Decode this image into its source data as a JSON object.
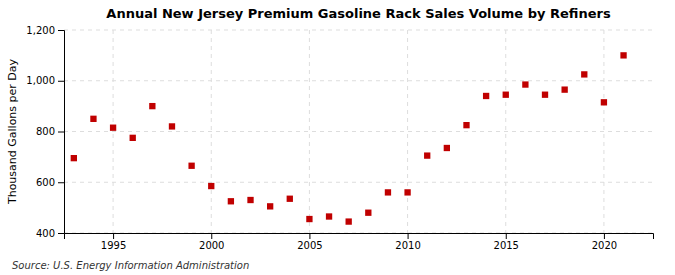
{
  "chart_data": {
    "type": "scatter",
    "title": "Annual New Jersey Premium Gasoline Rack Sales Volume by Refiners",
    "ylabel": "Thousand Gallons per Day",
    "source": "Source: U.S. Energy Information Administration",
    "x": [
      1993,
      1994,
      1995,
      1996,
      1997,
      1998,
      1999,
      2000,
      2001,
      2002,
      2003,
      2004,
      2005,
      2006,
      2007,
      2008,
      2009,
      2010,
      2011,
      2012,
      2013,
      2014,
      2015,
      2016,
      2017,
      2018,
      2019,
      2020,
      2021
    ],
    "values": [
      695,
      850,
      815,
      775,
      900,
      820,
      665,
      585,
      525,
      530,
      505,
      535,
      455,
      465,
      445,
      480,
      560,
      560,
      705,
      735,
      825,
      940,
      945,
      985,
      945,
      965,
      1025,
      915,
      1100
    ],
    "color": "#c00000",
    "marker": "square",
    "xlim": [
      1992.5,
      2022.5
    ],
    "xticks": [
      1995,
      2000,
      2005,
      2010,
      2015,
      2020
    ],
    "ylim": [
      400,
      1200
    ],
    "yticks": [
      400,
      600,
      800,
      {
        "value": 1000,
        "label": "1,000"
      },
      {
        "value": 1200,
        "label": "1,200"
      }
    ],
    "grid": true
  }
}
